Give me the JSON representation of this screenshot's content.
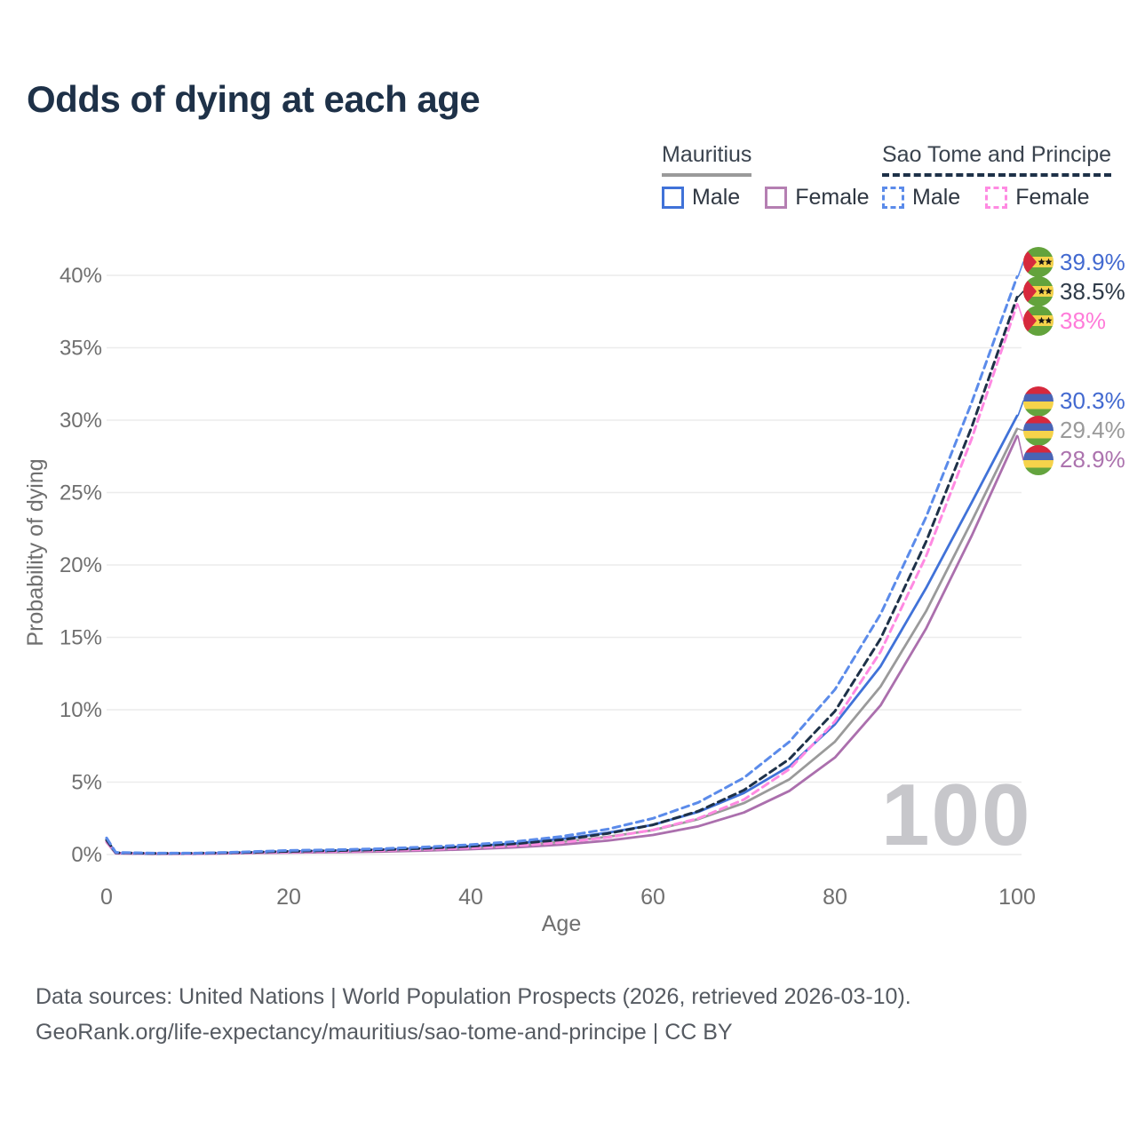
{
  "title": "Odds of dying at each age",
  "watermark": "100",
  "legend": {
    "groups": [
      {
        "label": "Mauritius",
        "line_style": "solid",
        "underline_color": "#9a9a9a",
        "items": [
          {
            "label": "Male",
            "color": "#4072d8"
          },
          {
            "label": "Female",
            "color": "#b57fb2"
          }
        ]
      },
      {
        "label": "Sao Tome and Principe",
        "line_style": "dashed",
        "underline_color": "#1e3148",
        "items": [
          {
            "label": "Male",
            "color": "#5b8bea"
          },
          {
            "label": "Female",
            "color": "#ff8ae2"
          }
        ]
      }
    ]
  },
  "chart_data": {
    "type": "line",
    "title": "Odds of dying at each age",
    "xlabel": "Age",
    "ylabel": "Probability of dying",
    "xlim": [
      0,
      100
    ],
    "ylim_percent": [
      0,
      40
    ],
    "x_ticks": [
      0,
      20,
      40,
      60,
      80,
      100
    ],
    "y_tick_labels": [
      "0%",
      "5%",
      "10%",
      "15%",
      "20%",
      "25%",
      "30%",
      "35%",
      "40%"
    ],
    "grid": "horizontal",
    "legend_position": "top-right",
    "x_ages": [
      0,
      1,
      5,
      10,
      15,
      20,
      25,
      30,
      35,
      40,
      45,
      50,
      55,
      60,
      65,
      70,
      75,
      80,
      85,
      90,
      95,
      100
    ],
    "series": [
      {
        "name": "Mauritius Female",
        "country": "Mauritius",
        "sex": "Female",
        "color": "#ab6fad",
        "dashed": false,
        "values": [
          0.85,
          0.08,
          0.05,
          0.05,
          0.09,
          0.13,
          0.16,
          0.2,
          0.27,
          0.37,
          0.5,
          0.69,
          0.96,
          1.35,
          1.95,
          2.9,
          4.4,
          6.7,
          10.3,
          15.6,
          22.0,
          28.9
        ]
      },
      {
        "name": "Mauritius Both sexes",
        "country": "Mauritius",
        "sex": "Both",
        "color": "#9a9a9a",
        "dashed": false,
        "values": [
          0.95,
          0.09,
          0.05,
          0.06,
          0.11,
          0.17,
          0.22,
          0.27,
          0.35,
          0.47,
          0.64,
          0.88,
          1.22,
          1.68,
          2.45,
          3.55,
          5.2,
          7.8,
          11.6,
          16.8,
          23.0,
          29.4
        ]
      },
      {
        "name": "Mauritius Male",
        "country": "Mauritius",
        "sex": "Male",
        "color": "#4072d8",
        "dashed": false,
        "values": [
          1.05,
          0.1,
          0.06,
          0.07,
          0.13,
          0.21,
          0.27,
          0.33,
          0.43,
          0.57,
          0.78,
          1.08,
          1.5,
          2.05,
          2.95,
          4.25,
          6.1,
          9.0,
          13.0,
          18.4,
          24.3,
          30.3
        ]
      },
      {
        "name": "Sao Tome and Principe Female",
        "country": "Sao Tome and Principe",
        "sex": "Female",
        "color": "#ff8ae2",
        "dashed": true,
        "values": [
          0.9,
          0.1,
          0.07,
          0.07,
          0.11,
          0.17,
          0.21,
          0.27,
          0.35,
          0.46,
          0.61,
          0.83,
          1.18,
          1.7,
          2.5,
          3.8,
          5.9,
          9.2,
          14.0,
          20.6,
          28.7,
          38.0
        ]
      },
      {
        "name": "Sao Tome and Principe Both sexes",
        "country": "Sao Tome and Principe",
        "sex": "Both",
        "color": "#1e3148",
        "dashed": true,
        "values": [
          1.0,
          0.12,
          0.08,
          0.09,
          0.14,
          0.22,
          0.27,
          0.33,
          0.43,
          0.57,
          0.75,
          1.02,
          1.45,
          2.05,
          3.0,
          4.45,
          6.6,
          9.9,
          14.9,
          21.6,
          29.5,
          38.5
        ]
      },
      {
        "name": "Sao Tome and Principe Male",
        "country": "Sao Tome and Principe",
        "sex": "Male",
        "color": "#5b8bea",
        "dashed": true,
        "values": [
          1.15,
          0.15,
          0.1,
          0.1,
          0.18,
          0.28,
          0.33,
          0.4,
          0.52,
          0.68,
          0.9,
          1.25,
          1.75,
          2.5,
          3.6,
          5.3,
          7.8,
          11.4,
          16.6,
          23.3,
          31.2,
          39.9
        ]
      }
    ],
    "end_labels": [
      {
        "text": "39.9%",
        "value": 39.9,
        "text_color": "#4269d0",
        "line_color": "#5b8bea",
        "flag": "sao-tome-and-principe"
      },
      {
        "text": "38.5%",
        "value": 38.5,
        "text_color": "#2e3a48",
        "line_color": "#1e3148",
        "flag": "sao-tome-and-principe"
      },
      {
        "text": "38%",
        "value": 38.0,
        "text_color": "#ff7bd9",
        "line_color": "#ff8ae2",
        "flag": "sao-tome-and-principe"
      },
      {
        "text": "30.3%",
        "value": 30.3,
        "text_color": "#4269d0",
        "line_color": "#4072d8",
        "flag": "mauritius"
      },
      {
        "text": "29.4%",
        "value": 29.4,
        "text_color": "#9a9a9a",
        "line_color": "#9a9a9a",
        "flag": "mauritius"
      },
      {
        "text": "28.9%",
        "value": 28.9,
        "text_color": "#ac73ae",
        "line_color": "#ab6fad",
        "flag": "mauritius"
      }
    ],
    "colors": {
      "grid": "#ececec",
      "axis_text": "#6f6f6f",
      "watermark": "#c7c7cb"
    }
  },
  "footer": {
    "line1": "Data sources: United Nations | World Population Prospects (2026, retrieved 2026-03-10).",
    "line2": "GeoRank.org/life-expectancy/mauritius/sao-tome-and-principe | CC BY"
  }
}
